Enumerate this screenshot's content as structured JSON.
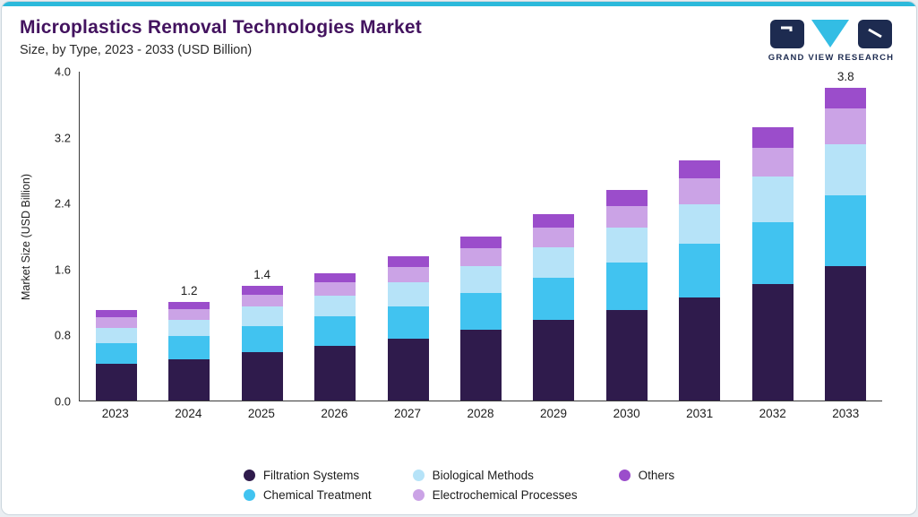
{
  "accent_color": "#2CB9DB",
  "header": {
    "title": "Microplastics Removal Technologies Market",
    "subtitle": "Size, by Type, 2023 - 2033 (USD Billion)",
    "brand_name": "GRAND VIEW RESEARCH"
  },
  "brand_colors": {
    "dark": "#1d2b50",
    "cyan": "#33bde4"
  },
  "chart_data": {
    "type": "bar",
    "stacked": true,
    "title": "Microplastics Removal Technologies Market Size, by Type, 2023 - 2033 (USD Billion)",
    "xlabel": "",
    "ylabel": "Market Size (USD Billion)",
    "ylim": [
      0,
      4.0
    ],
    "yticks": [
      0.0,
      0.8,
      1.6,
      2.4,
      3.2,
      4.0
    ],
    "grid": false,
    "legend_position": "bottom",
    "categories": [
      "2023",
      "2024",
      "2025",
      "2026",
      "2027",
      "2028",
      "2029",
      "2030",
      "2031",
      "2032",
      "2033"
    ],
    "series": [
      {
        "name": "Filtration Systems",
        "color": "#2F1B4C",
        "values": [
          0.45,
          0.5,
          0.59,
          0.66,
          0.75,
          0.86,
          0.98,
          1.1,
          1.25,
          1.42,
          1.63
        ]
      },
      {
        "name": "Chemical Treatment",
        "color": "#41C3F0",
        "values": [
          0.25,
          0.28,
          0.32,
          0.36,
          0.4,
          0.45,
          0.51,
          0.58,
          0.66,
          0.75,
          0.87
        ]
      },
      {
        "name": "Biological Methods",
        "color": "#B6E3F8",
        "values": [
          0.18,
          0.2,
          0.23,
          0.26,
          0.29,
          0.33,
          0.37,
          0.42,
          0.48,
          0.55,
          0.62
        ]
      },
      {
        "name": "Electrochemical Processes",
        "color": "#CBA3E6",
        "values": [
          0.13,
          0.13,
          0.15,
          0.16,
          0.18,
          0.21,
          0.24,
          0.27,
          0.31,
          0.35,
          0.43
        ]
      },
      {
        "name": "Others",
        "color": "#9B4DCB",
        "values": [
          0.09,
          0.09,
          0.11,
          0.11,
          0.13,
          0.15,
          0.17,
          0.19,
          0.22,
          0.25,
          0.25
        ]
      }
    ],
    "totals": [
      1.1,
      1.2,
      1.4,
      1.55,
      1.75,
      2.0,
      2.27,
      2.56,
      2.92,
      3.32,
      3.8
    ],
    "bar_labels": {
      "2024": "1.2",
      "2025": "1.4",
      "2033": "3.8"
    }
  }
}
